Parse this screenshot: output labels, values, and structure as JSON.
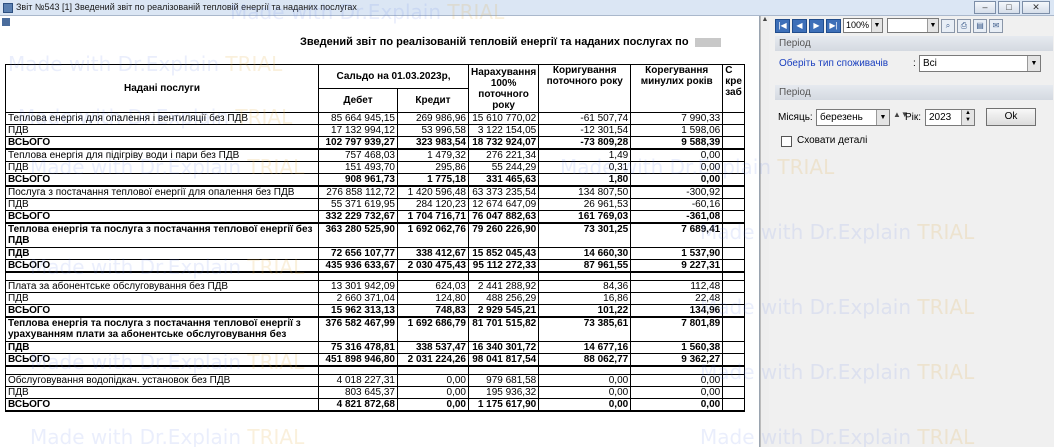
{
  "window": {
    "title": "Звіт №543 [1] Зведений звіт по реалізованій тепловій енергії та наданих послугах",
    "buttons": {
      "minimize": "–",
      "maximize": "□",
      "close": "✕"
    }
  },
  "report": {
    "title": "Зведений звіт по реалізованій тепловій енергії та наданих послугах по",
    "columns": {
      "services": "Надані послуги",
      "saldo": "Сальдо на 01.03.2023р,",
      "debit": "Дебет",
      "credit": "Кредит",
      "accrual": "Нарахування 100% поточного року",
      "corr_current": "Коригування поточного року",
      "corr_past": "Корегування минулих років",
      "cut": "С кре заб"
    },
    "rows": [
      {
        "name": "Теплова енергія для опалення і вентиляції без ПДВ",
        "debit": "85 664 945,15",
        "credit": "269 986,96",
        "accrual": "15 610 770,02",
        "corr_current": "-61 507,74",
        "corr_past": "7 990,33"
      },
      {
        "name": "ПДВ",
        "debit": "17 132 994,12",
        "credit": "53 996,58",
        "accrual": "3 122 154,05",
        "corr_current": "-12 301,54",
        "corr_past": "1 598,06"
      },
      {
        "name": "ВСЬОГО",
        "debit": "102 797 939,27",
        "credit": "323 983,54",
        "accrual": "18 732 924,07",
        "corr_current": "-73 809,28",
        "corr_past": "9 588,39"
      },
      {
        "name": "Теплова енергія для підігріву води і пари без ПДВ",
        "debit": "757 468,03",
        "credit": "1 479,32",
        "accrual": "276 221,34",
        "corr_current": "1,49",
        "corr_past": "0,00"
      },
      {
        "name": "ПДВ",
        "debit": "151 493,70",
        "credit": "295,86",
        "accrual": "55 244,29",
        "corr_current": "0,31",
        "corr_past": "0,00"
      },
      {
        "name": "ВСЬОГО",
        "debit": "908 961,73",
        "credit": "1 775,18",
        "accrual": "331 465,63",
        "corr_current": "1,80",
        "corr_past": "0,00"
      },
      {
        "name": "Послуга з постачання теплової енергії для опалення без ПДВ",
        "debit": "276 858 112,72",
        "credit": "1 420 596,48",
        "accrual": "63 373 235,54",
        "corr_current": "134 807,50",
        "corr_past": "-300,92"
      },
      {
        "name": "ПДВ",
        "debit": "55 371 619,95",
        "credit": "284 120,23",
        "accrual": "12 674 647,09",
        "corr_current": "26 961,53",
        "corr_past": "-60,16"
      },
      {
        "name": "ВСЬОГО",
        "debit": "332 229 732,67",
        "credit": "1 704 716,71",
        "accrual": "76 047 882,63",
        "corr_current": "161 769,03",
        "corr_past": "-361,08"
      },
      {
        "name": "Теплова енергія та послуга з постачання теплової енергії без ПДВ",
        "debit": "363 280 525,90",
        "credit": "1 692 062,76",
        "accrual": "79 260 226,90",
        "corr_current": "73 301,25",
        "corr_past": "7 689,41"
      },
      {
        "name": "ПДВ",
        "debit": "72 656 107,77",
        "credit": "338 412,67",
        "accrual": "15 852 045,43",
        "corr_current": "14 660,30",
        "corr_past": "1 537,90"
      },
      {
        "name": "ВСЬОГО",
        "debit": "435 936 633,67",
        "credit": "2 030 475,43",
        "accrual": "95 112 272,33",
        "corr_current": "87 961,55",
        "corr_past": "9 227,31"
      },
      {
        "name": "Плата за абонентське обслуговування без ПДВ",
        "debit": "13 301 942,09",
        "credit": "624,03",
        "accrual": "2 441 288,92",
        "corr_current": "84,36",
        "corr_past": "112,48"
      },
      {
        "name": "ПДВ",
        "debit": "2 660 371,04",
        "credit": "124,80",
        "accrual": "488 256,29",
        "corr_current": "16,86",
        "corr_past": "22,48"
      },
      {
        "name": "ВСЬОГО",
        "debit": "15 962 313,13",
        "credit": "748,83",
        "accrual": "2 929 545,21",
        "corr_current": "101,22",
        "corr_past": "134,96"
      },
      {
        "name": "Теплова енергія та послуга з постачання теплової енергії з урахуванням плати за абонентське обслуговування без",
        "debit": "376 582 467,99",
        "credit": "1 692 686,79",
        "accrual": "81 701 515,82",
        "corr_current": "73 385,61",
        "corr_past": "7 801,89"
      },
      {
        "name": "ПДВ",
        "debit": "75 316 478,81",
        "credit": "338 537,47",
        "accrual": "16 340 301,72",
        "corr_current": "14 677,16",
        "corr_past": "1 560,38"
      },
      {
        "name": "ВСЬОГО",
        "debit": "451 898 946,80",
        "credit": "2 031 224,26",
        "accrual": "98 041 817,54",
        "corr_current": "88 062,77",
        "corr_past": "9 362,27"
      },
      {
        "name": "Обслуговування водопідкач. установок без ПДВ",
        "debit": "4 018 227,31",
        "credit": "0,00",
        "accrual": "979 681,58",
        "corr_current": "0,00",
        "corr_past": "0,00"
      },
      {
        "name": "ПДВ",
        "debit": "803 645,37",
        "credit": "0,00",
        "accrual": "195 936,32",
        "corr_current": "0,00",
        "corr_past": "0,00"
      },
      {
        "name": "ВСЬОГО",
        "debit": "4 821 872,68",
        "credit": "0,00",
        "accrual": "1 175 617,90",
        "corr_current": "0,00",
        "corr_past": "0,00"
      }
    ]
  },
  "toolbar": {
    "zoom": "100%",
    "icons": [
      "first-page-icon",
      "prev-page-icon",
      "next-page-icon",
      "last-page-icon",
      "find-icon",
      "print-icon",
      "export-icon",
      "email-icon"
    ]
  },
  "panel": {
    "group1_label": "Період",
    "consumer_type_label": "Оберіть тип споживачів",
    "consumer_type_value": "Всі",
    "group2_label": "Період",
    "month_label": "Місяць",
    "month_value": "березень",
    "year_label": "Рік",
    "year_value": "2023",
    "ok_label": "Ok",
    "hide_details_label": "Сховати деталі"
  },
  "watermark": {
    "prefix": "Made with Dr.Explain ",
    "trial": "TRIAL"
  }
}
